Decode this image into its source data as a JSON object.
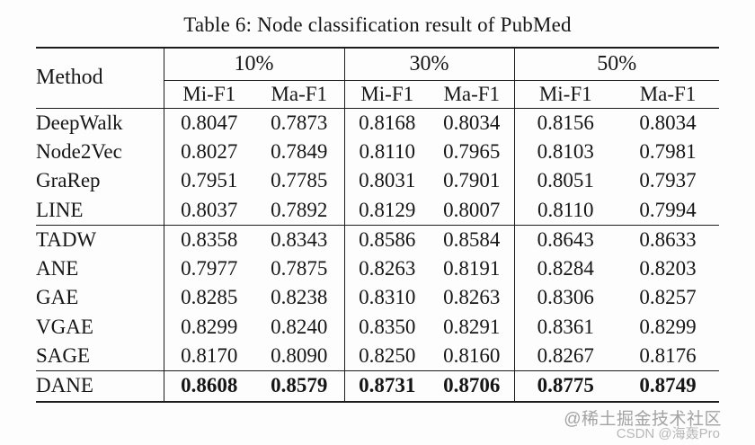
{
  "title": "Table 6: Node classification result of PubMed",
  "table": {
    "method_header": "Method",
    "groups": [
      {
        "label": "10%"
      },
      {
        "label": "30%"
      },
      {
        "label": "50%"
      }
    ],
    "subheaders": [
      "Mi-F1",
      "Ma-F1"
    ],
    "sections": [
      {
        "rows": [
          {
            "method": "DeepWalk",
            "values": [
              "0.8047",
              "0.7873",
              "0.8168",
              "0.8034",
              "0.8156",
              "0.8034"
            ]
          },
          {
            "method": "Node2Vec",
            "values": [
              "0.8027",
              "0.7849",
              "0.8110",
              "0.7965",
              "0.8103",
              "0.7981"
            ]
          },
          {
            "method": "GraRep",
            "values": [
              "0.7951",
              "0.7785",
              "0.8031",
              "0.7901",
              "0.8051",
              "0.7937"
            ]
          },
          {
            "method": "LINE",
            "values": [
              "0.8037",
              "0.7892",
              "0.8129",
              "0.8007",
              "0.8110",
              "0.7994"
            ]
          }
        ]
      },
      {
        "rows": [
          {
            "method": "TADW",
            "values": [
              "0.8358",
              "0.8343",
              "0.8586",
              "0.8584",
              "0.8643",
              "0.8633"
            ]
          },
          {
            "method": "ANE",
            "values": [
              "0.7977",
              "0.7875",
              "0.8263",
              "0.8191",
              "0.8284",
              "0.8203"
            ]
          },
          {
            "method": "GAE",
            "values": [
              "0.8285",
              "0.8238",
              "0.8310",
              "0.8263",
              "0.8306",
              "0.8257"
            ]
          },
          {
            "method": "VGAE",
            "values": [
              "0.8299",
              "0.8240",
              "0.8350",
              "0.8291",
              "0.8361",
              "0.8299"
            ]
          },
          {
            "method": "SAGE",
            "values": [
              "0.8170",
              "0.8090",
              "0.8250",
              "0.8160",
              "0.8267",
              "0.8176"
            ]
          }
        ]
      },
      {
        "rows": [
          {
            "method": "DANE",
            "bold": true,
            "values": [
              "0.8608",
              "0.8579",
              "0.8731",
              "0.8706",
              "0.8775",
              "0.8749"
            ]
          }
        ]
      }
    ]
  },
  "watermarks": {
    "juejin": "@稀土掘金技术社区",
    "csdn": "CSDN @海轰Pro"
  },
  "colors": {
    "text": "#161616",
    "rule": "#1c1c1c",
    "watermark_primary": "#a2a2a2",
    "watermark_secondary": "#b7b7b7"
  }
}
